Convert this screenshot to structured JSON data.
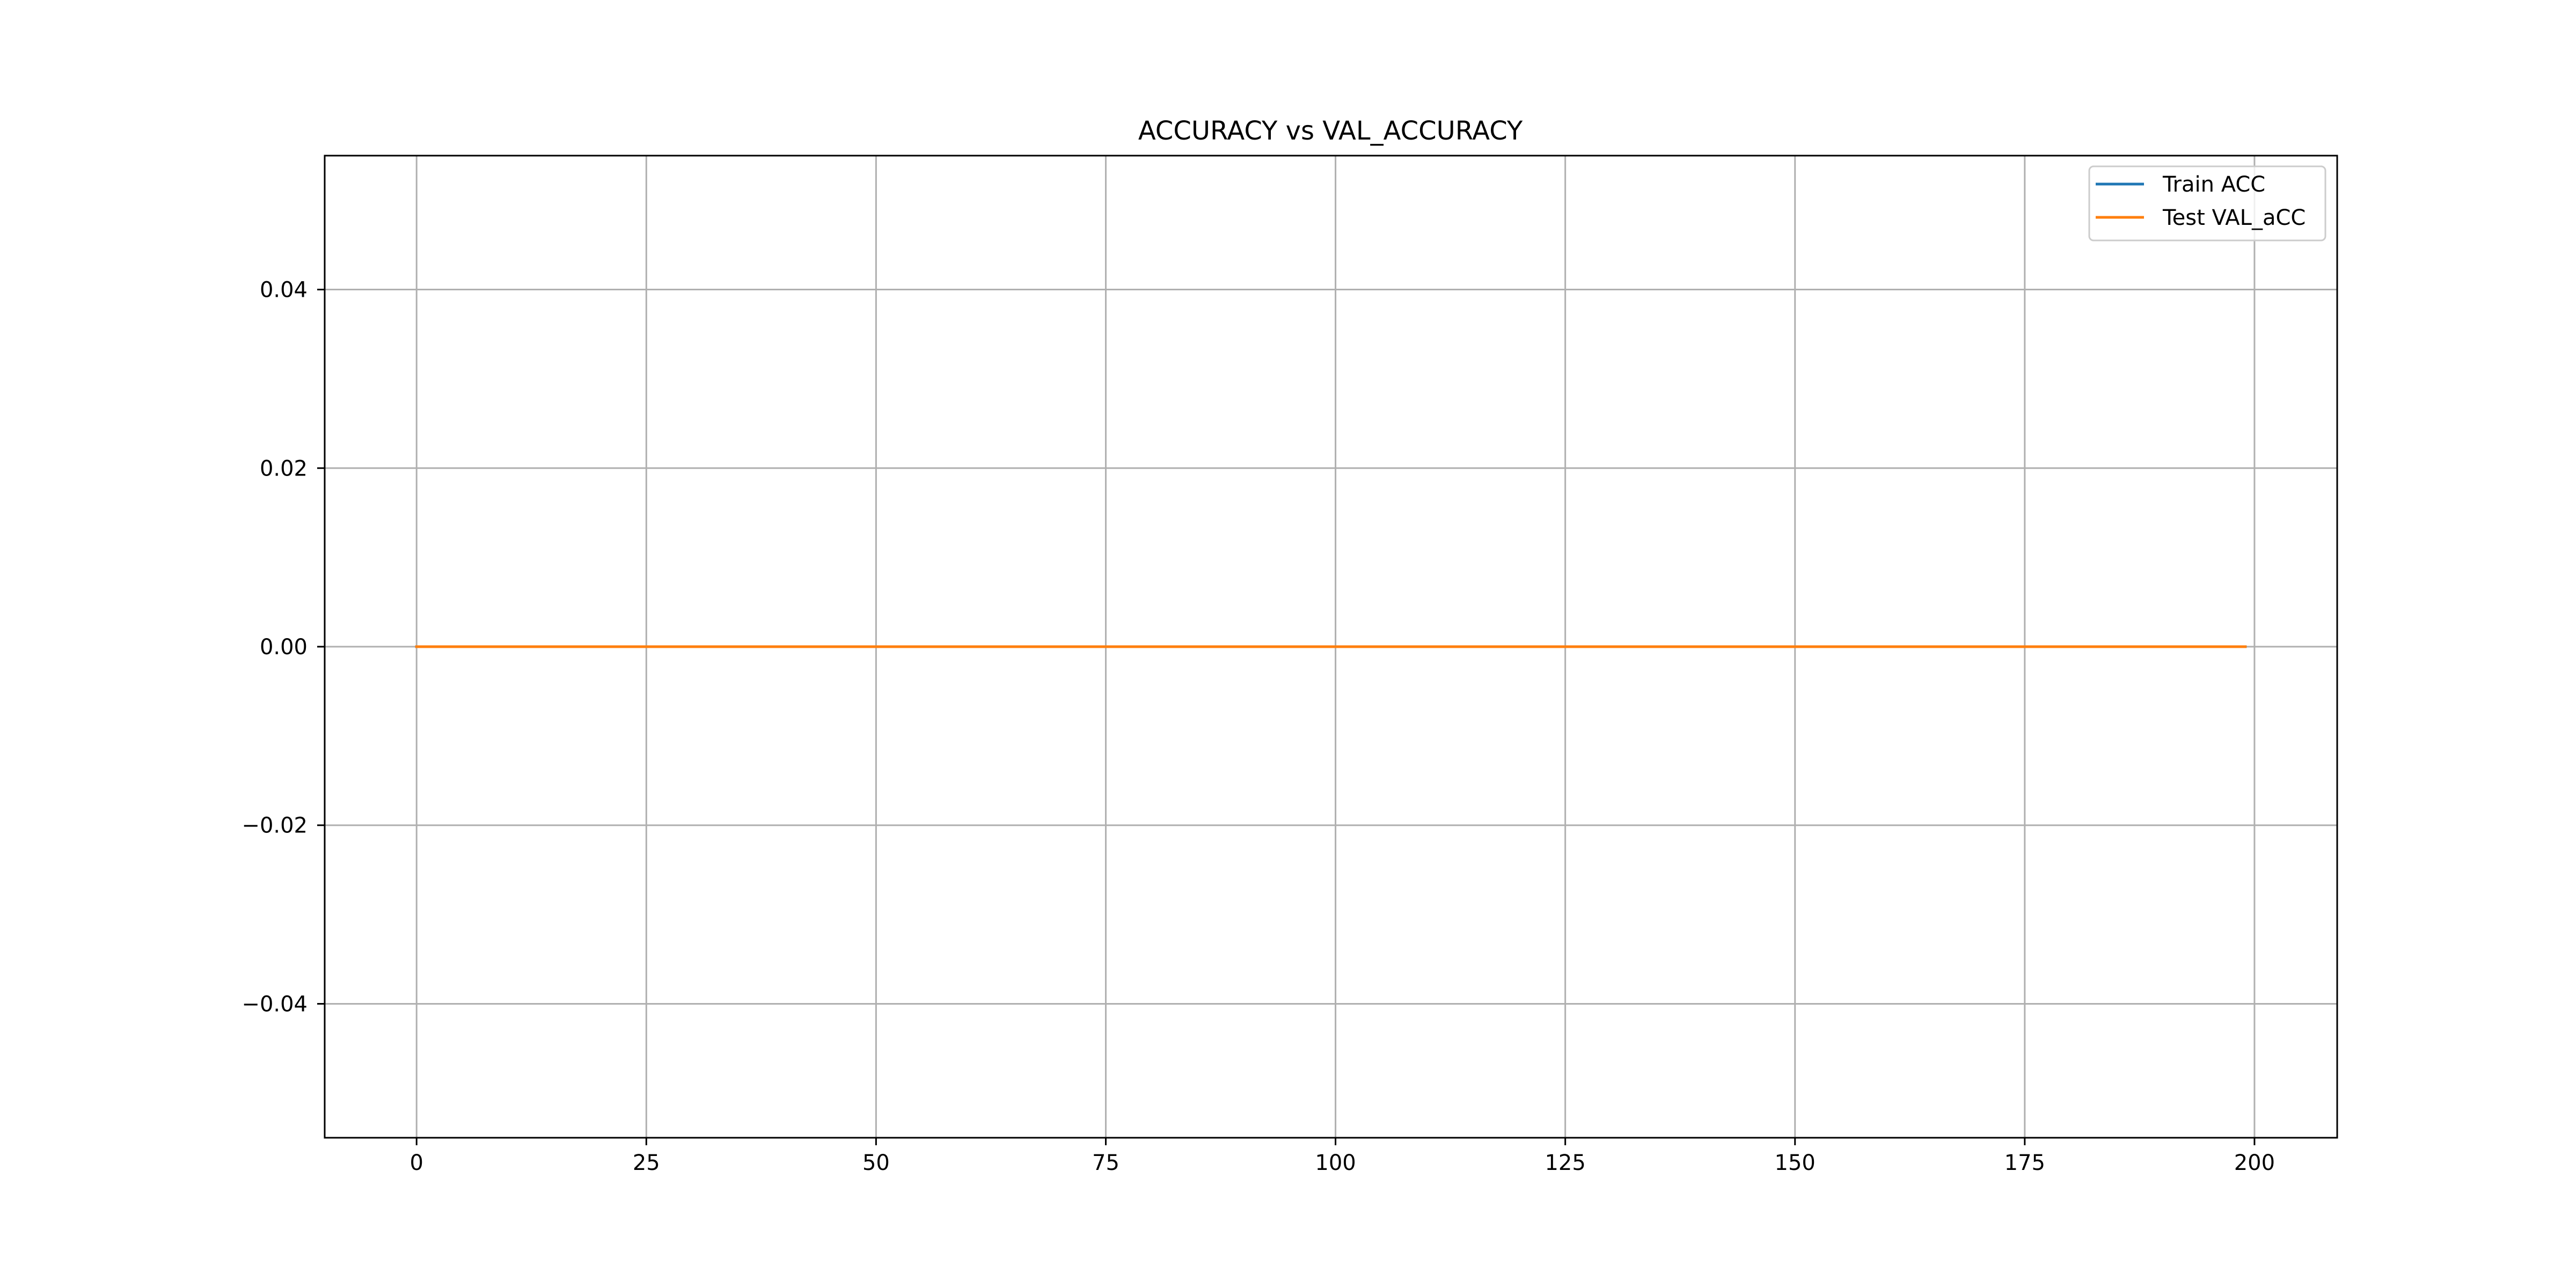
{
  "chart_data": {
    "type": "line",
    "title": "ACCURACY vs VAL_ACCURACY",
    "xlabel": "",
    "ylabel": "",
    "xlim": [
      -10,
      209
    ],
    "ylim": [
      -0.055,
      0.055
    ],
    "x_ticks": [
      0,
      25,
      50,
      75,
      100,
      125,
      150,
      175,
      200
    ],
    "x_tick_labels": [
      "0",
      "25",
      "50",
      "75",
      "100",
      "125",
      "150",
      "175",
      "200"
    ],
    "y_ticks": [
      -0.04,
      -0.02,
      0.0,
      0.02,
      0.04
    ],
    "y_tick_labels": [
      "−0.04",
      "−0.02",
      "0.00",
      "0.02",
      "0.04"
    ],
    "grid": true,
    "legend_position": "top-right",
    "x": [
      0,
      199
    ],
    "series": [
      {
        "name": "Train ACC",
        "color": "#1f77b4",
        "values": [
          0,
          0
        ]
      },
      {
        "name": "Test VAL_aCC",
        "color": "#ff7f0e",
        "values": [
          0,
          0
        ]
      }
    ]
  }
}
